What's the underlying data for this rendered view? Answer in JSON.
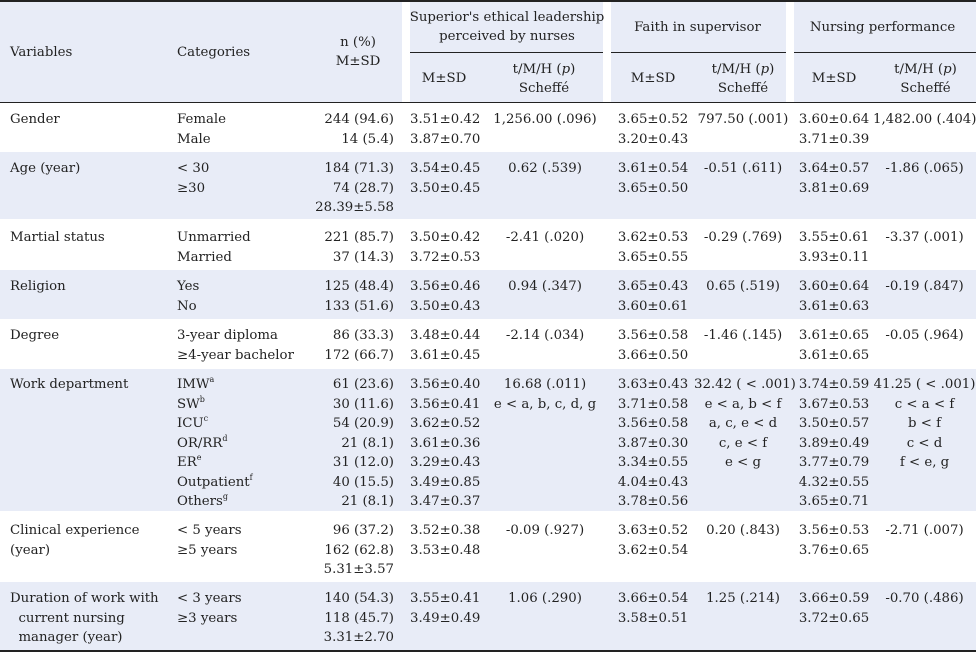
{
  "headers": {
    "variables": "Variables",
    "categories": "Categories",
    "n_pct": [
      "n (%)",
      "M±SD"
    ],
    "group1": [
      "Superior's ethical leadership",
      "perceived by nurses"
    ],
    "group2": "Faith in supervisor",
    "group3": "Nursing performance",
    "msd": "M±SD",
    "test": [
      "t/M/H (p)",
      "Scheffé"
    ]
  },
  "rows": [
    {
      "variable": [
        "Gender"
      ],
      "categories": [
        "Female",
        "Male"
      ],
      "n": [
        "244 (94.6)",
        "14 (5.4)"
      ],
      "el_msd": [
        "3.51±0.42",
        "3.87±0.70"
      ],
      "el_test": [
        "1,256.00 (.096)"
      ],
      "fs_msd": [
        "3.65±0.52",
        "3.20±0.43"
      ],
      "fs_test": [
        "797.50 (.001)"
      ],
      "np_msd": [
        "3.60±0.64",
        "3.71±0.39"
      ],
      "np_test": [
        "1,482.00 (.404)"
      ]
    },
    {
      "variable": [
        "Age (year)"
      ],
      "categories": [
        "< 30",
        "≥30"
      ],
      "n": [
        "184 (71.3)",
        "74 (28.7)",
        "28.39±5.58"
      ],
      "el_msd": [
        "3.54±0.45",
        "3.50±0.45"
      ],
      "el_test": [
        "0.62 (.539)"
      ],
      "fs_msd": [
        "3.61±0.54",
        "3.65±0.50"
      ],
      "fs_test": [
        "-0.51 (.611)"
      ],
      "np_msd": [
        "3.64±0.57",
        "3.81±0.69"
      ],
      "np_test": [
        "-1.86 (.065)"
      ]
    },
    {
      "variable": [
        "Martial status"
      ],
      "categories": [
        "Unmarried",
        "Married"
      ],
      "n": [
        "221 (85.7)",
        "37 (14.3)"
      ],
      "el_msd": [
        "3.50±0.42",
        "3.72±0.53"
      ],
      "el_test": [
        "-2.41 (.020)"
      ],
      "fs_msd": [
        "3.62±0.53",
        "3.65±0.55"
      ],
      "fs_test": [
        "-0.29 (.769)"
      ],
      "np_msd": [
        "3.55±0.61",
        "3.93±0.11"
      ],
      "np_test": [
        "-3.37 (.001)"
      ]
    },
    {
      "variable": [
        "Religion"
      ],
      "categories": [
        "Yes",
        "No"
      ],
      "n": [
        "125 (48.4)",
        "133 (51.6)"
      ],
      "el_msd": [
        "3.56±0.46",
        "3.50±0.43"
      ],
      "el_test": [
        "0.94 (.347)"
      ],
      "fs_msd": [
        "3.65±0.43",
        "3.60±0.61"
      ],
      "fs_test": [
        "0.65 (.519)"
      ],
      "np_msd": [
        "3.60±0.64",
        "3.61±0.63"
      ],
      "np_test": [
        "-0.19 (.847)"
      ]
    },
    {
      "variable": [
        "Degree"
      ],
      "categories": [
        "3-year diploma",
        "≥4-year bachelor"
      ],
      "n": [
        "86 (33.3)",
        "172 (66.7)"
      ],
      "el_msd": [
        "3.48±0.44",
        "3.61±0.45"
      ],
      "el_test": [
        "-2.14 (.034)"
      ],
      "fs_msd": [
        "3.56±0.58",
        "3.66±0.50"
      ],
      "fs_test": [
        "-1.46 (.145)"
      ],
      "np_msd": [
        "3.61±0.65",
        "3.61±0.65"
      ],
      "np_test": [
        "-0.05 (.964)"
      ]
    },
    {
      "variable": [
        "Work department"
      ],
      "categories": [
        "IMW",
        "SW",
        "ICU",
        "OR/RR",
        "ER",
        "Outpatient",
        "Others"
      ],
      "cat_sup": [
        "a",
        "b",
        "c",
        "d",
        "e",
        "f",
        "g"
      ],
      "n": [
        "61 (23.6)",
        "30 (11.6)",
        "54 (20.9)",
        "21 (8.1)",
        "31 (12.0)",
        "40 (15.5)",
        "21 (8.1)"
      ],
      "el_msd": [
        "3.56±0.40",
        "3.56±0.41",
        "3.62±0.52",
        "3.61±0.36",
        "3.29±0.43",
        "3.49±0.85",
        "3.47±0.37"
      ],
      "el_test": [
        "16.68 (.011)",
        "e < a, b, c, d, g"
      ],
      "fs_msd": [
        "3.63±0.43",
        "3.71±0.58",
        "3.56±0.58",
        "3.87±0.30",
        "3.34±0.55",
        "4.04±0.43",
        "3.78±0.56"
      ],
      "fs_test": [
        "32.42 ( < .001)",
        "e < a, b < f",
        "a, c, e < d",
        "c, e < f",
        "e < g"
      ],
      "np_msd": [
        "3.74±0.59",
        "3.67±0.53",
        "3.50±0.57",
        "3.89±0.49",
        "3.77±0.79",
        "4.32±0.55",
        "3.65±0.71"
      ],
      "np_test": [
        "41.25 ( < .001)",
        "c < a < f",
        "b < f",
        "c < d",
        "f < e, g"
      ]
    },
    {
      "variable": [
        "Clinical experience",
        "(year)"
      ],
      "categories": [
        "< 5 years",
        "≥5 years"
      ],
      "n": [
        "96 (37.2)",
        "162 (62.8)",
        "5.31±3.57"
      ],
      "el_msd": [
        "3.52±0.38",
        "3.53±0.48"
      ],
      "el_test": [
        "-0.09 (.927)"
      ],
      "fs_msd": [
        "3.63±0.52",
        "3.62±0.54"
      ],
      "fs_test": [
        "0.20 (.843)"
      ],
      "np_msd": [
        "3.56±0.53",
        "3.76±0.65"
      ],
      "np_test": [
        "-2.71 (.007)"
      ]
    },
    {
      "variable": [
        "Duration of work with",
        "  current nursing",
        "  manager (year)"
      ],
      "categories": [
        "< 3 years",
        "≥3 years"
      ],
      "n": [
        "140 (54.3)",
        "118 (45.7)",
        "3.31±2.70"
      ],
      "el_msd": [
        "3.55±0.41",
        "3.49±0.49"
      ],
      "el_test": [
        "1.06 (.290)"
      ],
      "fs_msd": [
        "3.66±0.54",
        "3.58±0.51"
      ],
      "fs_test": [
        "1.25 (.214)"
      ],
      "np_msd": [
        "3.66±0.59",
        "3.72±0.65"
      ],
      "np_test": [
        "-0.70 (.486)"
      ]
    }
  ]
}
